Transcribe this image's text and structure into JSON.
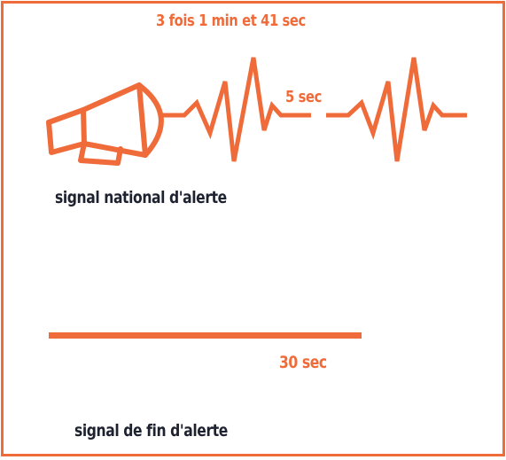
{
  "colors": {
    "accent": "#ef6b3a",
    "text": "#1e2230",
    "background": "#ffffff"
  },
  "icons": {
    "megaphone": "megaphone-icon"
  },
  "national_alert": {
    "repeat_label": "3 fois 1 min et 41 sec",
    "pause_label": "5 sec",
    "name": "signal national d'alerte"
  },
  "end_alert": {
    "duration_label": "30 sec",
    "name": "signal de fin d'alerte"
  }
}
